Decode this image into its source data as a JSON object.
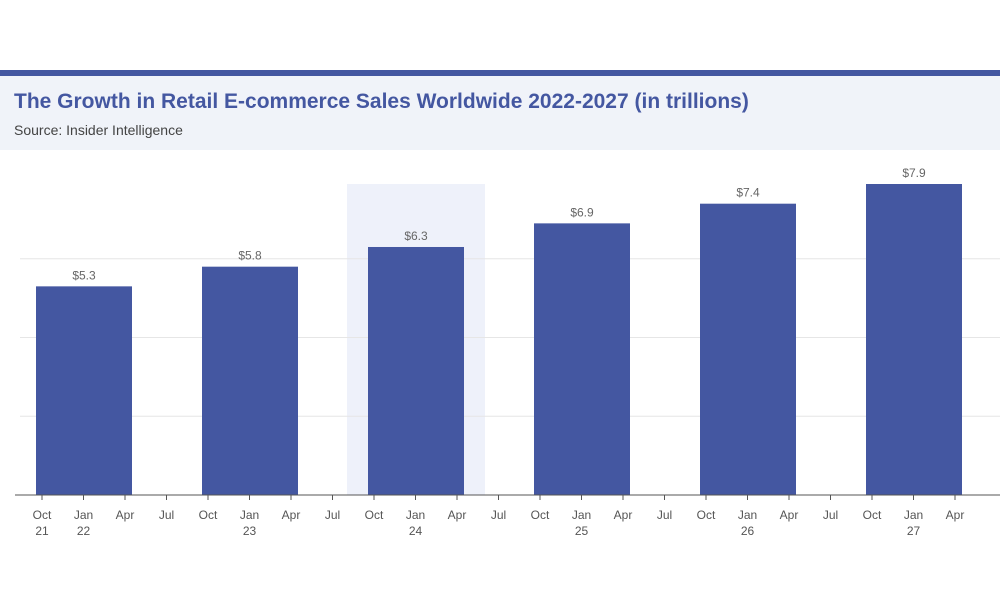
{
  "chart_data": {
    "type": "bar",
    "title": "The Growth in Retail E-commerce Sales Worldwide 2022-2027 (in trillions)",
    "subtitle": "Source: Insider Intelligence",
    "categories": [
      "2022",
      "2023",
      "2024",
      "2025",
      "2026",
      "2027"
    ],
    "values": [
      5.3,
      5.8,
      6.3,
      6.9,
      7.4,
      7.9
    ],
    "data_labels": [
      "$5.3",
      "$5.8",
      "$6.3",
      "$6.9",
      "$7.4",
      "$7.9"
    ],
    "highlighted_category": "2024",
    "x_ticks": [
      [
        "Oct",
        "21"
      ],
      [
        "Jan",
        "22"
      ],
      [
        "Apr",
        ""
      ],
      [
        "Jul",
        ""
      ],
      [
        "Oct",
        ""
      ],
      [
        "Jan",
        "23"
      ],
      [
        "Apr",
        ""
      ],
      [
        "Jul",
        ""
      ],
      [
        "Oct",
        ""
      ],
      [
        "Jan",
        "24"
      ],
      [
        "Apr",
        ""
      ],
      [
        "Jul",
        ""
      ],
      [
        "Oct",
        ""
      ],
      [
        "Jan",
        "25"
      ],
      [
        "Apr",
        ""
      ],
      [
        "Jul",
        ""
      ],
      [
        "Oct",
        ""
      ],
      [
        "Jan",
        "26"
      ],
      [
        "Apr",
        ""
      ],
      [
        "Jul",
        ""
      ],
      [
        "Oct",
        ""
      ],
      [
        "Jan",
        "27"
      ],
      [
        "Apr",
        ""
      ]
    ],
    "ylim": [
      0,
      8
    ],
    "gridlines": [
      2,
      4,
      6
    ],
    "grid": true,
    "xlabel": "",
    "ylabel": "",
    "colors": {
      "bar": "#4457a1",
      "highlight": "#eef1fa",
      "accent": "#4457a1"
    }
  }
}
